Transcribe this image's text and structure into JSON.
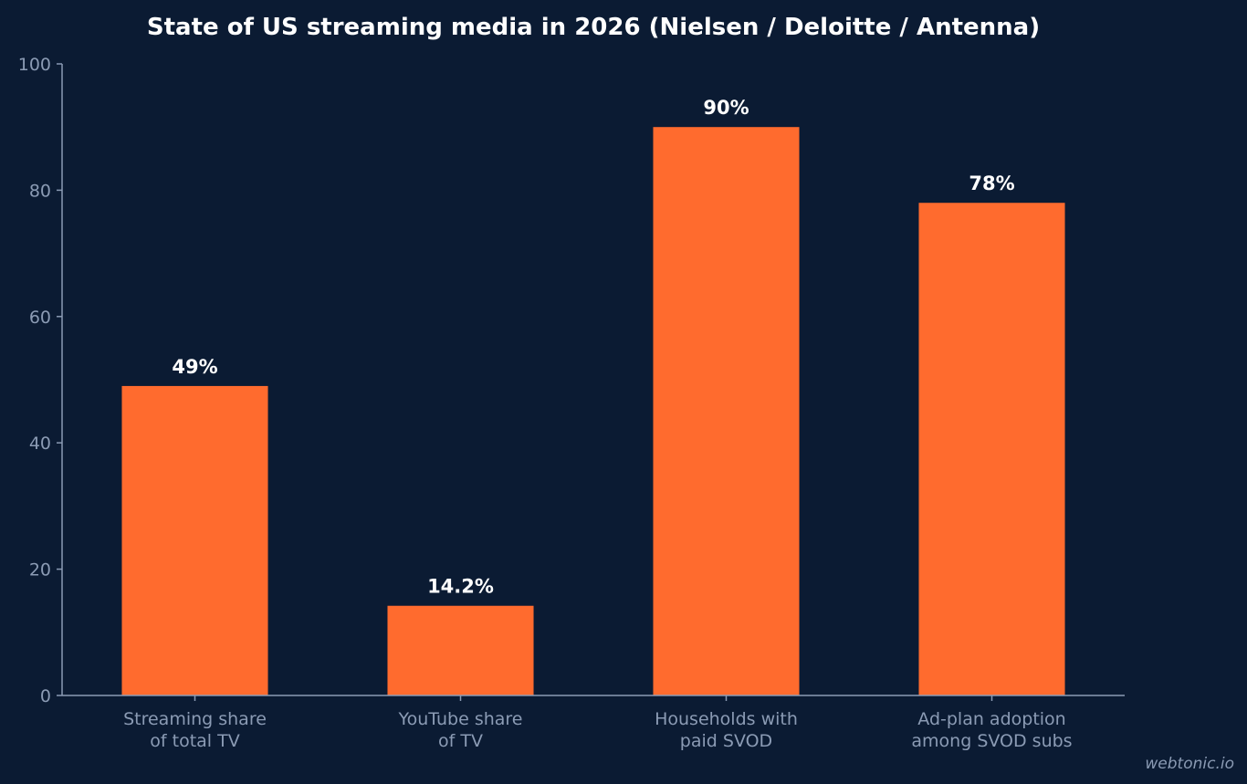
{
  "chart_data": {
    "type": "bar",
    "title": "State of US streaming media in 2026 (Nielsen / Deloitte / Antenna)",
    "categories": [
      [
        "Streaming share",
        "of total TV"
      ],
      [
        "YouTube share",
        "of TV"
      ],
      [
        "Households with",
        "paid SVOD"
      ],
      [
        "Ad-plan adoption",
        "among SVOD subs"
      ]
    ],
    "values": [
      49,
      14.2,
      90,
      78
    ],
    "data_labels": [
      "49%",
      "14.2%",
      "90%",
      "78%"
    ],
    "ylim": [
      0,
      100
    ],
    "yticks": [
      0,
      20,
      40,
      60,
      80,
      100
    ],
    "grid": false,
    "bar_color": "#ff6b2e",
    "background_color": "#0b1b33"
  },
  "watermark": "webtonic.io"
}
